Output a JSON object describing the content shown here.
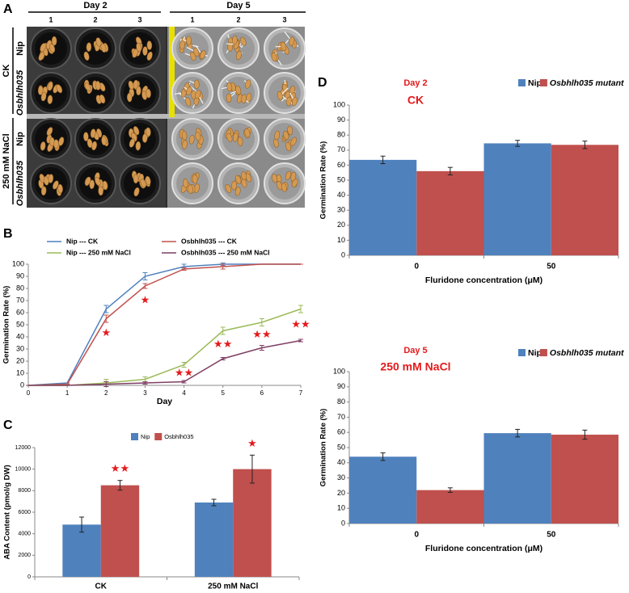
{
  "panel_labels": [
    "A",
    "B",
    "C",
    "D"
  ],
  "photo_panel": {
    "columns": [
      {
        "title": "Day 2",
        "wells": [
          "1",
          "2",
          "3"
        ]
      },
      {
        "title": "Day 5",
        "wells": [
          "1",
          "2",
          "3"
        ]
      }
    ],
    "groups": [
      {
        "name": "CK",
        "rows": [
          "Nip",
          "Osbhlh035"
        ]
      },
      {
        "name": "250 mM NaCl",
        "rows": [
          "Nip",
          "Osbhlh035"
        ]
      }
    ]
  },
  "chart_data": [
    {
      "type": "line",
      "xlabel": "Day",
      "ylabel": "Germination Rate (%)",
      "x": [
        0,
        1,
        2,
        3,
        4,
        5,
        6,
        7
      ],
      "xlim": [
        0,
        7
      ],
      "xticks": [
        0,
        1,
        2,
        3,
        4,
        5,
        6,
        7
      ],
      "ylim": [
        0,
        100
      ],
      "yticks": [
        0,
        10,
        20,
        30,
        40,
        50,
        60,
        70,
        80,
        90,
        100
      ],
      "series": [
        {
          "name": "Nip --- CK",
          "color": "#4f81bd",
          "values": [
            0,
            2,
            63,
            90,
            98,
            100,
            100,
            100
          ],
          "errors": [
            0,
            0,
            3,
            3,
            2,
            1,
            0,
            0
          ]
        },
        {
          "name": "Osbhlh035 --- CK",
          "color": "#c0504d",
          "values": [
            0,
            1,
            55,
            82,
            96,
            98,
            100,
            100
          ],
          "errors": [
            0,
            0,
            3,
            2,
            1,
            2,
            0,
            0
          ]
        },
        {
          "name": "Nip --- 250 mM NaCl",
          "color": "#9bbb59",
          "values": [
            0,
            0,
            2,
            5,
            17,
            45,
            52,
            63
          ],
          "errors": [
            0,
            0,
            3,
            2,
            2,
            3,
            3,
            3
          ]
        },
        {
          "name": "Osbhlh035 --- 250 mM NaCl",
          "color": "#7f3f63",
          "values": [
            0,
            0,
            1,
            2,
            3,
            22,
            31,
            37
          ],
          "errors": [
            0,
            0,
            2,
            1,
            1,
            1,
            2,
            1
          ]
        }
      ],
      "annotations": [
        {
          "x": 2,
          "text": "★"
        },
        {
          "x": 3,
          "text": "★"
        },
        {
          "x": 4,
          "text": "★★"
        },
        {
          "x": 5,
          "text": "★★"
        },
        {
          "x": 6,
          "text": "★★"
        },
        {
          "x": 7,
          "text": "★★"
        }
      ]
    },
    {
      "type": "bar",
      "ylabel": "ABA Content (pmol/g DW)",
      "categories": [
        "CK",
        "250 mM NaCl"
      ],
      "ylim": [
        0,
        12000
      ],
      "yticks": [
        0,
        2000,
        4000,
        6000,
        8000,
        10000,
        12000
      ],
      "series": [
        {
          "name": "Nip",
          "color": "#4f81bd",
          "values": [
            4850,
            6900
          ],
          "errors": [
            700,
            300
          ]
        },
        {
          "name": "Osbhlh035",
          "color": "#c0504d",
          "values": [
            8500,
            10000
          ],
          "errors": [
            450,
            1300
          ]
        }
      ],
      "annotations": [
        {
          "category": "CK",
          "text": "★★"
        },
        {
          "category": "250 mM NaCl",
          "text": "★"
        }
      ]
    },
    {
      "type": "bar",
      "title": "Day 2",
      "subtitle": "CK",
      "xlabel": "Fluridone concentration (μM)",
      "ylabel": "Germination Rate (%)",
      "categories": [
        "0",
        "50"
      ],
      "ylim": [
        0,
        100
      ],
      "yticks": [
        0,
        10,
        20,
        30,
        40,
        50,
        60,
        70,
        80,
        90,
        100
      ],
      "series": [
        {
          "name": "Nip",
          "color": "#4f81bd",
          "values": [
            63.5,
            74.5
          ],
          "errors": [
            2.5,
            2
          ]
        },
        {
          "name": "Osbhlh035 mutant",
          "color": "#c0504d",
          "values": [
            56,
            73.5
          ],
          "errors": [
            2.5,
            2.5
          ]
        }
      ]
    },
    {
      "type": "bar",
      "title": "Day 5",
      "subtitle": "250 mM NaCl",
      "xlabel": "Fluridone concentration (μM)",
      "ylabel": "Germination Rate (%)",
      "categories": [
        "0",
        "50"
      ],
      "ylim": [
        0,
        100
      ],
      "yticks": [
        0,
        10,
        20,
        30,
        40,
        50,
        60,
        70,
        80,
        90,
        100
      ],
      "series": [
        {
          "name": "Nip",
          "color": "#4f81bd",
          "values": [
            44,
            59.5
          ],
          "errors": [
            2.5,
            2.5
          ]
        },
        {
          "name": "Osbhlh035 mutant",
          "color": "#c0504d",
          "values": [
            22,
            58.5
          ],
          "errors": [
            1.5,
            3
          ]
        }
      ]
    }
  ]
}
